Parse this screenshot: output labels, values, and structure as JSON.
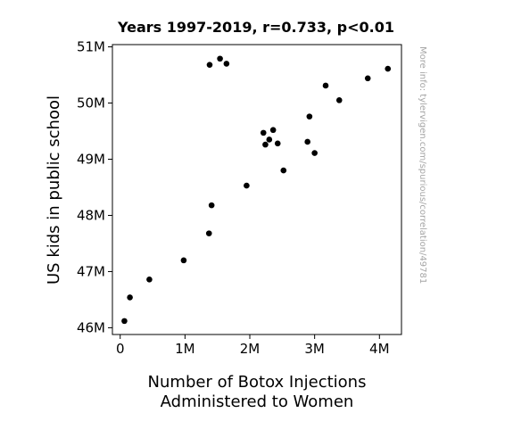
{
  "chart_data": {
    "type": "scatter",
    "title": "Years 1997-2019, r=0.733, p<0.01",
    "xlabel_lines": [
      "Number of Botox Injections",
      "Administered to Women"
    ],
    "ylabel": "US kids in public school",
    "side_note": "More info: tylervigen.com/spurious/correlation/49781",
    "xlim": [
      -120000,
      4340000
    ],
    "ylim": [
      45880000,
      51040000
    ],
    "x_ticks": [
      {
        "value": 0,
        "label": "0"
      },
      {
        "value": 1000000,
        "label": "1M"
      },
      {
        "value": 2000000,
        "label": "2M"
      },
      {
        "value": 3000000,
        "label": "3M"
      },
      {
        "value": 4000000,
        "label": "4M"
      }
    ],
    "y_ticks": [
      {
        "value": 46000000,
        "label": "46M"
      },
      {
        "value": 47000000,
        "label": "47M"
      },
      {
        "value": 48000000,
        "label": "48M"
      },
      {
        "value": 49000000,
        "label": "49M"
      },
      {
        "value": 50000000,
        "label": "50M"
      },
      {
        "value": 51000000,
        "label": "51M"
      }
    ],
    "grid": false,
    "marker_color": "#000000",
    "points": [
      {
        "x": 65000,
        "y": 46120000
      },
      {
        "x": 150000,
        "y": 46540000
      },
      {
        "x": 450000,
        "y": 46860000
      },
      {
        "x": 980000,
        "y": 47200000
      },
      {
        "x": 1370000,
        "y": 47680000
      },
      {
        "x": 1410000,
        "y": 48180000
      },
      {
        "x": 1950000,
        "y": 48530000
      },
      {
        "x": 2520000,
        "y": 48800000
      },
      {
        "x": 3000000,
        "y": 49110000
      },
      {
        "x": 2240000,
        "y": 49260000
      },
      {
        "x": 2430000,
        "y": 49280000
      },
      {
        "x": 2890000,
        "y": 49310000
      },
      {
        "x": 2300000,
        "y": 49350000
      },
      {
        "x": 2210000,
        "y": 49470000
      },
      {
        "x": 2360000,
        "y": 49520000
      },
      {
        "x": 2920000,
        "y": 49760000
      },
      {
        "x": 3380000,
        "y": 50050000
      },
      {
        "x": 3170000,
        "y": 50310000
      },
      {
        "x": 3820000,
        "y": 50440000
      },
      {
        "x": 4130000,
        "y": 50610000
      },
      {
        "x": 1380000,
        "y": 50680000
      },
      {
        "x": 1640000,
        "y": 50700000
      },
      {
        "x": 1540000,
        "y": 50790000
      }
    ]
  }
}
